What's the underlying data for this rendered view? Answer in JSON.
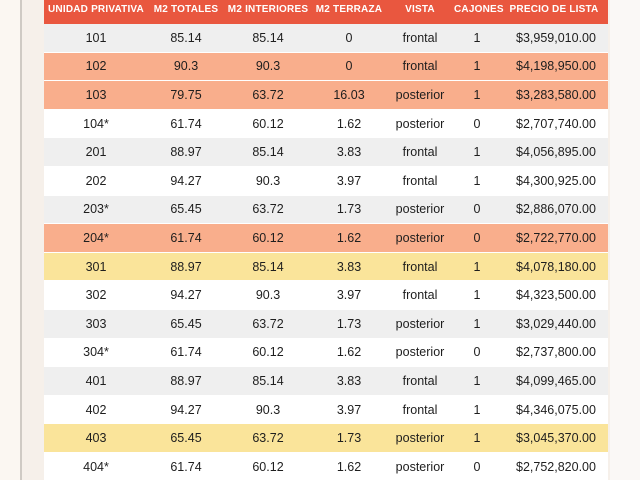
{
  "table": {
    "headers": [
      "UNIDAD PRIVATIVA",
      "M2 TOTALES",
      "M2 INTERIORES",
      "M2 TERRAZA",
      "VISTA",
      "CAJONES",
      "PRECIO DE LISTA"
    ],
    "rows": [
      {
        "highlight": "gray",
        "cells": [
          "101",
          "85.14",
          "85.14",
          "0",
          "frontal",
          "1",
          "$3,959,010.00"
        ]
      },
      {
        "highlight": "orange",
        "cells": [
          "102",
          "90.3",
          "90.3",
          "0",
          "frontal",
          "1",
          "$4,198,950.00"
        ]
      },
      {
        "highlight": "orange",
        "cells": [
          "103",
          "79.75",
          "63.72",
          "16.03",
          "posterior",
          "1",
          "$3,283,580.00"
        ]
      },
      {
        "highlight": "white",
        "cells": [
          "104*",
          "61.74",
          "60.12",
          "1.62",
          "posterior",
          "0",
          "$2,707,740.00"
        ]
      },
      {
        "highlight": "gray",
        "cells": [
          "201",
          "88.97",
          "85.14",
          "3.83",
          "frontal",
          "1",
          "$4,056,895.00"
        ]
      },
      {
        "highlight": "white",
        "cells": [
          "202",
          "94.27",
          "90.3",
          "3.97",
          "frontal",
          "1",
          "$4,300,925.00"
        ]
      },
      {
        "highlight": "gray",
        "cells": [
          "203*",
          "65.45",
          "63.72",
          "1.73",
          "posterior",
          "0",
          "$2,886,070.00"
        ]
      },
      {
        "highlight": "orange",
        "cells": [
          "204*",
          "61.74",
          "60.12",
          "1.62",
          "posterior",
          "0",
          "$2,722,770.00"
        ]
      },
      {
        "highlight": "yellow",
        "cells": [
          "301",
          "88.97",
          "85.14",
          "3.83",
          "frontal",
          "1",
          "$4,078,180.00"
        ]
      },
      {
        "highlight": "white",
        "cells": [
          "302",
          "94.27",
          "90.3",
          "3.97",
          "frontal",
          "1",
          "$4,323,500.00"
        ]
      },
      {
        "highlight": "gray",
        "cells": [
          "303",
          "65.45",
          "63.72",
          "1.73",
          "posterior",
          "1",
          "$3,029,440.00"
        ]
      },
      {
        "highlight": "white",
        "cells": [
          "304*",
          "61.74",
          "60.12",
          "1.62",
          "posterior",
          "0",
          "$2,737,800.00"
        ]
      },
      {
        "highlight": "gray",
        "cells": [
          "401",
          "88.97",
          "85.14",
          "3.83",
          "frontal",
          "1",
          "$4,099,465.00"
        ]
      },
      {
        "highlight": "white",
        "cells": [
          "402",
          "94.27",
          "90.3",
          "3.97",
          "frontal",
          "1",
          "$4,346,075.00"
        ]
      },
      {
        "highlight": "yellow",
        "cells": [
          "403",
          "65.45",
          "63.72",
          "1.73",
          "posterior",
          "1",
          "$3,045,370.00"
        ]
      },
      {
        "highlight": "white",
        "cells": [
          "404*",
          "61.74",
          "60.12",
          "1.62",
          "posterior",
          "0",
          "$2,752,820.00"
        ]
      }
    ]
  },
  "colors": {
    "header_bg": "#e9573f",
    "highlight_orange": "#f9ae8c",
    "highlight_yellow": "#fae49a",
    "row_gray": "#efefef"
  }
}
